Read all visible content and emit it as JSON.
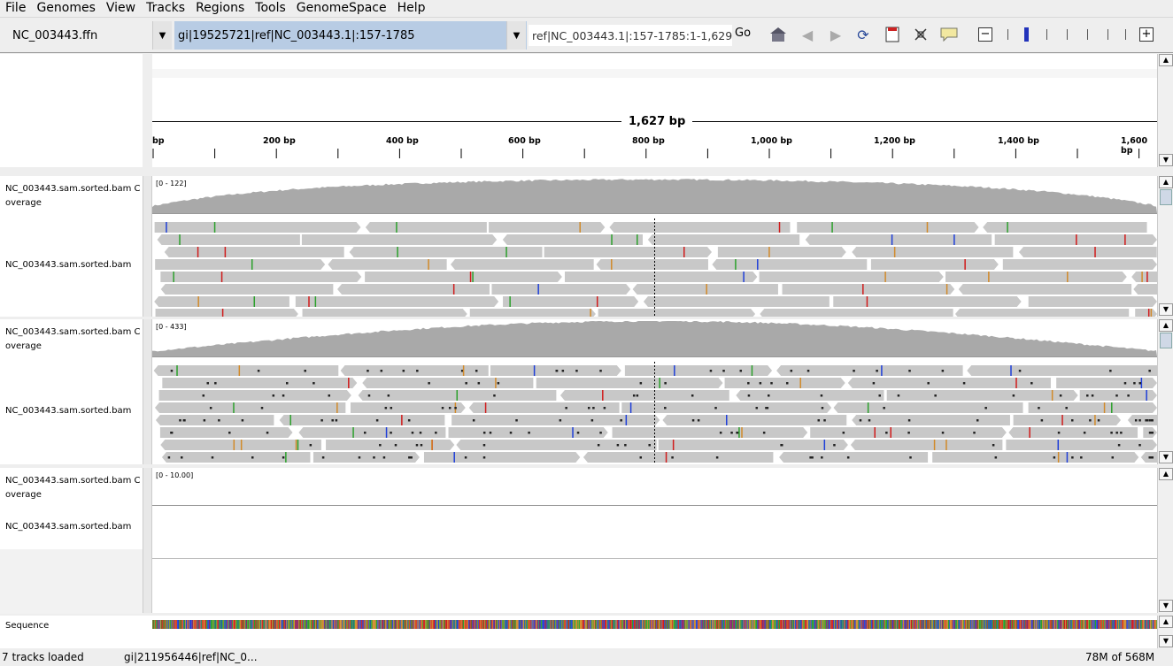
{
  "menu": {
    "file": "File",
    "genomes": "Genomes",
    "view": "View",
    "tracks": "Tracks",
    "regions": "Regions",
    "tools": "Tools",
    "genomespace": "GenomeSpace",
    "help": "Help"
  },
  "toolbar": {
    "genome": "NC_003443.ffn",
    "chromosome": "gi|19525721|ref|NC_003443.1|:157-1785",
    "locus": "ref|NC_003443.1|:157-1785:1-1,629",
    "go_label": "Go",
    "icons": [
      "home-icon",
      "back-icon",
      "forward-icon",
      "refresh-icon",
      "roi-icon",
      "resize-icon",
      "popup-icon"
    ],
    "zoom_out": "−",
    "zoom_in": "+"
  },
  "ruler": {
    "span": "1,627 bp",
    "ticks": [
      "bp",
      "200 bp",
      "400 bp",
      "600 bp",
      "800 bp",
      "1,000 bp",
      "1,200 bp",
      "1,400 bp",
      "1,600 bp"
    ]
  },
  "tracks": {
    "t1_cov_name": "NC_003443.sam.sorted.bam Coverage",
    "t1_cov_range": "[0 - 122]",
    "t1_reads_name": "NC_003443.sam.sorted.bam",
    "t2_cov_name": "NC_003443.sam.sorted.bam Coverage",
    "t2_cov_range": "[0 - 433]",
    "t2_reads_name": "NC_003443.sam.sorted.bam",
    "t3_cov_name": "NC_003443.sam.sorted.bam Coverage",
    "t3_cov_range": "[0 - 10.00]",
    "t3_reads_name": "NC_003443.sam.sorted.bam",
    "sequence_name": "Sequence"
  },
  "colors": {
    "coverage": "#a9a9a9",
    "read": "#c8c8c8",
    "mismatch_a": "#2ca02c",
    "mismatch_c": "#1f3fd8",
    "mismatch_g": "#d18a2a",
    "mismatch_t": "#d01c1c"
  },
  "status": {
    "left": "7 tracks loaded",
    "middle": "gi|211956446|ref|NC_0...",
    "memory": "78M of 568M"
  }
}
